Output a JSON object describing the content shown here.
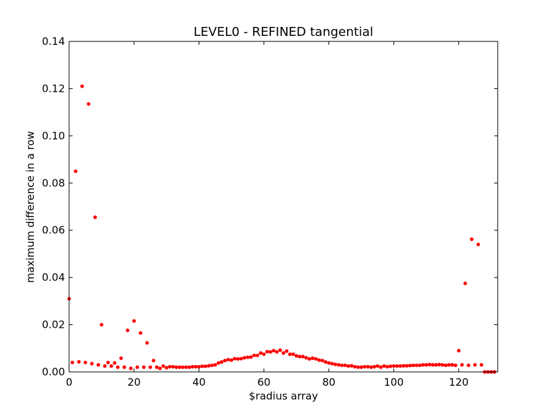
{
  "chart_data": {
    "type": "scatter",
    "title": "LEVEL0 - REFINED tangential",
    "xlabel": "$radius array",
    "ylabel": "maximum difference in a row",
    "xlim": [
      0,
      132
    ],
    "ylim": [
      0,
      0.14
    ],
    "xticks": [
      "0",
      "20",
      "40",
      "60",
      "80",
      "100",
      "120"
    ],
    "yticks": [
      "0.00",
      "0.02",
      "0.04",
      "0.06",
      "0.08",
      "0.10",
      "0.12",
      "0.14"
    ],
    "grid": false,
    "marker_color": "#ff0000",
    "points": [
      [
        0,
        0.031
      ],
      [
        1,
        0.004
      ],
      [
        2,
        0.085
      ],
      [
        3,
        0.0043
      ],
      [
        4,
        0.121
      ],
      [
        5,
        0.004
      ],
      [
        6,
        0.1135
      ],
      [
        7,
        0.0035
      ],
      [
        8,
        0.0655
      ],
      [
        9,
        0.003
      ],
      [
        10,
        0.02
      ],
      [
        11,
        0.0025
      ],
      [
        12,
        0.004
      ],
      [
        13,
        0.0025
      ],
      [
        14,
        0.0038
      ],
      [
        15,
        0.002
      ],
      [
        16,
        0.0058
      ],
      [
        17,
        0.002
      ],
      [
        18,
        0.0176
      ],
      [
        19,
        0.0015
      ],
      [
        20,
        0.0216
      ],
      [
        21,
        0.002
      ],
      [
        22,
        0.0165
      ],
      [
        23,
        0.002
      ],
      [
        24,
        0.0123
      ],
      [
        25,
        0.002
      ],
      [
        26,
        0.0048
      ],
      [
        27,
        0.002
      ],
      [
        28,
        0.0015
      ],
      [
        29,
        0.0025
      ],
      [
        30,
        0.0018
      ],
      [
        31,
        0.0022
      ],
      [
        32,
        0.0022
      ],
      [
        33,
        0.002
      ],
      [
        34,
        0.002
      ],
      [
        35,
        0.002
      ],
      [
        36,
        0.002
      ],
      [
        37,
        0.002
      ],
      [
        38,
        0.0022
      ],
      [
        39,
        0.0022
      ],
      [
        40,
        0.0022
      ],
      [
        41,
        0.0024
      ],
      [
        42,
        0.0024
      ],
      [
        43,
        0.0026
      ],
      [
        44,
        0.0028
      ],
      [
        45,
        0.003
      ],
      [
        46,
        0.0038
      ],
      [
        47,
        0.0042
      ],
      [
        48,
        0.0048
      ],
      [
        49,
        0.0052
      ],
      [
        50,
        0.005
      ],
      [
        51,
        0.0056
      ],
      [
        52,
        0.0055
      ],
      [
        53,
        0.0056
      ],
      [
        54,
        0.006
      ],
      [
        55,
        0.0062
      ],
      [
        56,
        0.0063
      ],
      [
        57,
        0.007
      ],
      [
        58,
        0.007
      ],
      [
        59,
        0.008
      ],
      [
        60,
        0.0075
      ],
      [
        61,
        0.0086
      ],
      [
        62,
        0.0085
      ],
      [
        63,
        0.009
      ],
      [
        64,
        0.0085
      ],
      [
        65,
        0.0092
      ],
      [
        66,
        0.008
      ],
      [
        67,
        0.0088
      ],
      [
        68,
        0.0075
      ],
      [
        69,
        0.0075
      ],
      [
        70,
        0.0068
      ],
      [
        71,
        0.0065
      ],
      [
        72,
        0.0065
      ],
      [
        73,
        0.006
      ],
      [
        74,
        0.0055
      ],
      [
        75,
        0.0058
      ],
      [
        76,
        0.0055
      ],
      [
        77,
        0.005
      ],
      [
        78,
        0.0048
      ],
      [
        79,
        0.0042
      ],
      [
        80,
        0.0038
      ],
      [
        81,
        0.0035
      ],
      [
        82,
        0.0032
      ],
      [
        83,
        0.003
      ],
      [
        84,
        0.0028
      ],
      [
        85,
        0.0028
      ],
      [
        86,
        0.0025
      ],
      [
        87,
        0.0026
      ],
      [
        88,
        0.0022
      ],
      [
        89,
        0.002
      ],
      [
        90,
        0.002
      ],
      [
        91,
        0.0022
      ],
      [
        92,
        0.0022
      ],
      [
        93,
        0.002
      ],
      [
        94,
        0.0022
      ],
      [
        95,
        0.0025
      ],
      [
        96,
        0.002
      ],
      [
        97,
        0.0025
      ],
      [
        98,
        0.0022
      ],
      [
        99,
        0.0024
      ],
      [
        100,
        0.0025
      ],
      [
        101,
        0.0025
      ],
      [
        102,
        0.0025
      ],
      [
        103,
        0.0026
      ],
      [
        104,
        0.0026
      ],
      [
        105,
        0.0027
      ],
      [
        106,
        0.0028
      ],
      [
        107,
        0.0028
      ],
      [
        108,
        0.0028
      ],
      [
        109,
        0.003
      ],
      [
        110,
        0.003
      ],
      [
        111,
        0.0031
      ],
      [
        112,
        0.003
      ],
      [
        113,
        0.003
      ],
      [
        114,
        0.0031
      ],
      [
        115,
        0.003
      ],
      [
        116,
        0.0028
      ],
      [
        117,
        0.003
      ],
      [
        118,
        0.003
      ],
      [
        119,
        0.0028
      ],
      [
        120,
        0.009
      ],
      [
        121,
        0.003
      ],
      [
        122,
        0.0375
      ],
      [
        123,
        0.0028
      ],
      [
        124,
        0.0562
      ],
      [
        125,
        0.003
      ],
      [
        126,
        0.054
      ],
      [
        127,
        0.003
      ],
      [
        128,
        0.0
      ],
      [
        129,
        0.0
      ],
      [
        130,
        0.0
      ],
      [
        131,
        0.0
      ]
    ]
  }
}
